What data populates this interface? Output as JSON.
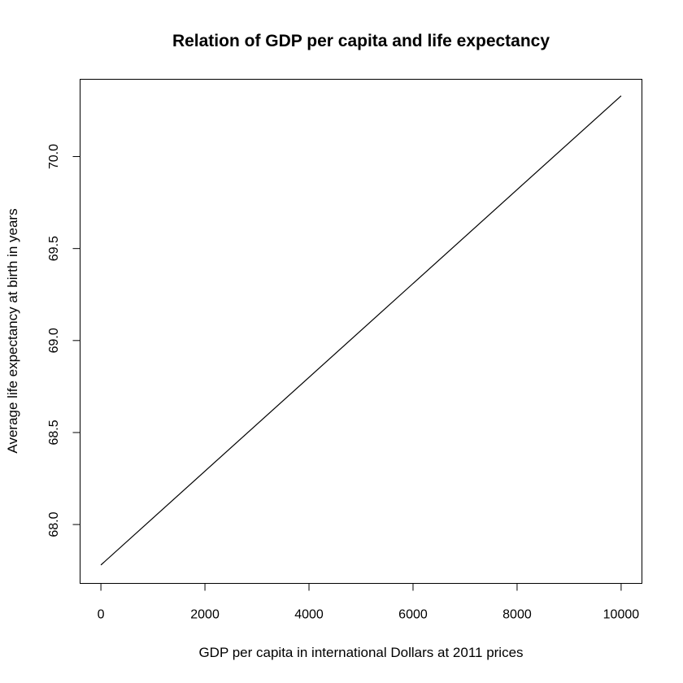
{
  "chart_data": {
    "type": "line",
    "title": "Relation of GDP per capita and life expectancy",
    "xlabel": "GDP per capita in international Dollars at 2011 prices",
    "ylabel": "Average life expectancy at birth in years",
    "xlim": [
      -400,
      10400
    ],
    "ylim": [
      67.68,
      70.42
    ],
    "x_ticks": [
      0,
      2000,
      4000,
      6000,
      8000,
      10000
    ],
    "x_tick_labels": [
      "0",
      "2000",
      "4000",
      "6000",
      "8000",
      "10000"
    ],
    "y_ticks": [
      68.0,
      68.5,
      69.0,
      69.5,
      70.0
    ],
    "y_tick_labels": [
      "68.0",
      "68.5",
      "69.0",
      "69.5",
      "70.0"
    ],
    "grid": false,
    "series": [
      {
        "x": [
          0,
          10000
        ],
        "y": [
          67.78,
          70.33
        ],
        "color": "#000000"
      }
    ]
  }
}
